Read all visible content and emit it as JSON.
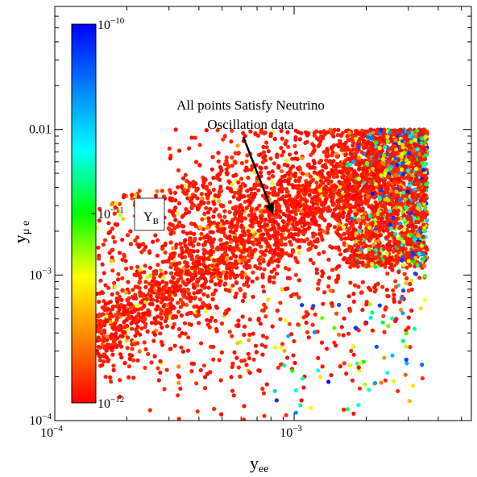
{
  "chart_data": {
    "type": "scatter",
    "x_scale": "log",
    "y_scale": "log",
    "xlim": [
      0.0001,
      0.0055
    ],
    "ylim": [
      0.0001,
      0.07
    ],
    "x_ticks": [
      {
        "value": 0.0001,
        "base": "10",
        "exp": "−4"
      },
      {
        "value": 0.001,
        "base": "10",
        "exp": "−3"
      }
    ],
    "y_ticks": [
      {
        "value": 0.0001,
        "base": "10",
        "exp": "−4"
      },
      {
        "value": 0.001,
        "base": "10",
        "exp": "−3"
      },
      {
        "value": 0.01,
        "label": "0.01"
      }
    ],
    "xlabel": {
      "main": "y",
      "sub": "ee"
    },
    "ylabel": {
      "main": "y",
      "sub": "μ e"
    },
    "colorbar": {
      "scale": "log",
      "range": [
        1e-12,
        1e-10
      ],
      "ticks": [
        {
          "value": 1e-10,
          "base": "10",
          "exp": "−10"
        },
        {
          "value": 1e-11,
          "base": "10",
          "exp": "−11"
        },
        {
          "value": 1e-12,
          "base": "10",
          "exp": "−12"
        }
      ],
      "colors": [
        "#ff0000",
        "#ff8000",
        "#ffff00",
        "#00ff00",
        "#00ffff",
        "#0080ff",
        "#0000ff"
      ]
    },
    "legend_box": {
      "main": "Y",
      "sub": "B"
    },
    "annotation": {
      "lines": [
        "All points Satisfy Neutrino",
        "Oscillation data"
      ],
      "arrow_to": [
        0.00082,
        0.0026
      ]
    },
    "grid": false,
    "point_summary": {
      "count": 5000,
      "description_of_distribution": "band along y≈x from (1.5e-4,4e-4) to (3.6e-3,7e-3) plus dense cloud at x 1.5e-3–3.6e-3, y 1e-3–9e-3; mostly red (≈1e-12), higher values toward upper right and lower right"
    }
  }
}
